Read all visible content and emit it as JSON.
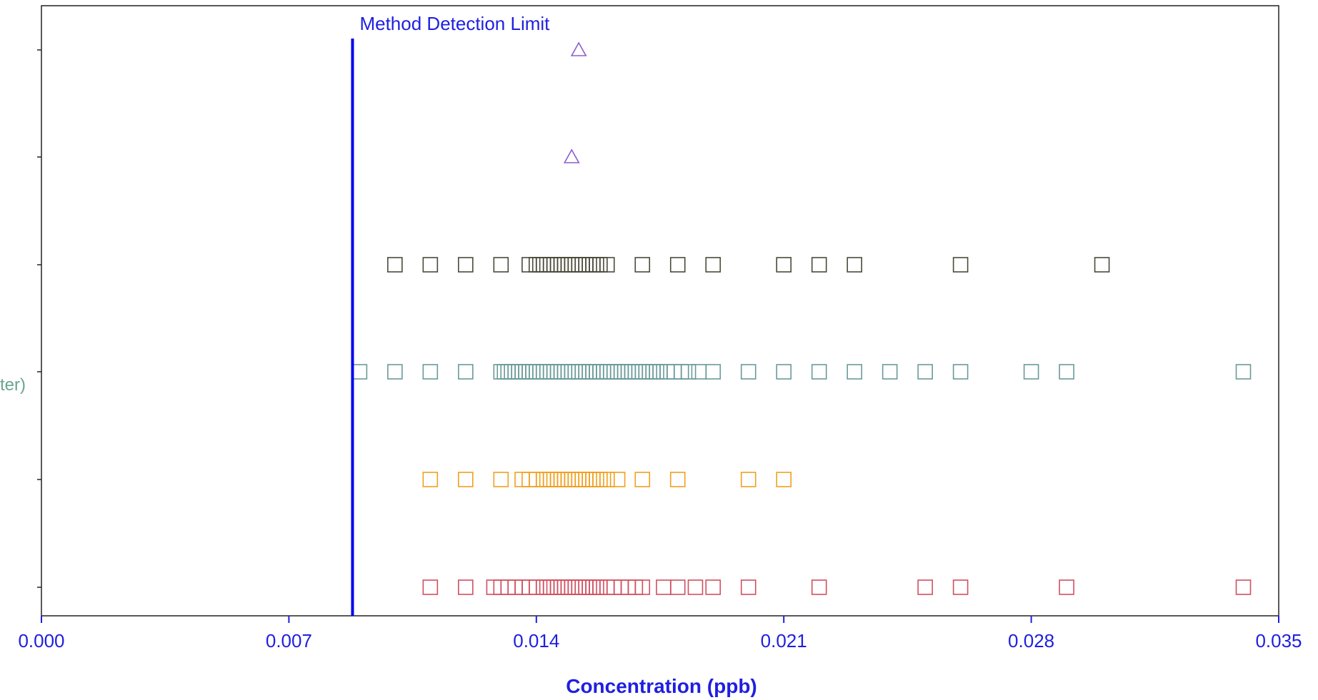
{
  "chart_data": {
    "type": "scatter",
    "title": "",
    "xlabel": "Concentration  (ppb)",
    "ylabel": "",
    "xlim": [
      0.0,
      0.035
    ],
    "x_ticks": [
      {
        "value": 0.0,
        "label": "0.000"
      },
      {
        "value": 0.007,
        "label": "0.007"
      },
      {
        "value": 0.014,
        "label": "0.014"
      },
      {
        "value": 0.021,
        "label": "0.021"
      },
      {
        "value": 0.028,
        "label": "0.028"
      },
      {
        "value": 0.035,
        "label": "0.035"
      }
    ],
    "grid": false,
    "reference_line": {
      "value": 0.0088,
      "label": "Method Detection Limit",
      "color": "#0000ee"
    },
    "partial_category_label": {
      "text": "ter)",
      "color": "#6aa68e",
      "row": 3
    },
    "rows": [
      {
        "marker": "triangle",
        "color": "#8a5fd0",
        "x": [
          0.0152
        ]
      },
      {
        "marker": "triangle",
        "color": "#8a5fd0",
        "x": [
          0.015
        ]
      },
      {
        "marker": "square",
        "color": "#4a4a3a",
        "x": [
          0.01,
          0.011,
          0.012,
          0.013,
          0.0138,
          0.014,
          0.0141,
          0.0142,
          0.0143,
          0.0144,
          0.0145,
          0.0146,
          0.0147,
          0.0148,
          0.0149,
          0.015,
          0.0151,
          0.0152,
          0.0153,
          0.0154,
          0.0155,
          0.0156,
          0.0157,
          0.0158,
          0.016,
          0.017,
          0.018,
          0.019,
          0.021,
          0.022,
          0.023,
          0.026,
          0.03
        ]
      },
      {
        "marker": "square",
        "color": "#6a9a9a",
        "x": [
          0.009,
          0.01,
          0.011,
          0.012,
          0.013,
          0.0131,
          0.0132,
          0.0133,
          0.0134,
          0.0135,
          0.0136,
          0.0137,
          0.0138,
          0.0139,
          0.014,
          0.0141,
          0.0142,
          0.0143,
          0.0144,
          0.0145,
          0.0146,
          0.0147,
          0.0148,
          0.0149,
          0.015,
          0.0151,
          0.0152,
          0.0153,
          0.0154,
          0.0155,
          0.0156,
          0.0157,
          0.0158,
          0.0159,
          0.016,
          0.0161,
          0.0162,
          0.0163,
          0.0164,
          0.0165,
          0.0166,
          0.0167,
          0.0168,
          0.0169,
          0.017,
          0.0171,
          0.0172,
          0.0173,
          0.0174,
          0.0175,
          0.0177,
          0.0179,
          0.0181,
          0.0183,
          0.0186,
          0.019,
          0.02,
          0.021,
          0.022,
          0.023,
          0.024,
          0.025,
          0.026,
          0.028,
          0.029,
          0.034
        ]
      },
      {
        "marker": "square",
        "color": "#f0a020",
        "x": [
          0.011,
          0.012,
          0.013,
          0.0136,
          0.0138,
          0.014,
          0.0142,
          0.0143,
          0.0144,
          0.0145,
          0.0146,
          0.0147,
          0.0148,
          0.0149,
          0.015,
          0.0151,
          0.0152,
          0.0153,
          0.0154,
          0.0155,
          0.0156,
          0.0157,
          0.0158,
          0.016,
          0.0163,
          0.017,
          0.018,
          0.02,
          0.021
        ]
      },
      {
        "marker": "square",
        "color": "#d05060",
        "x": [
          0.011,
          0.012,
          0.0128,
          0.013,
          0.0132,
          0.0134,
          0.0136,
          0.0138,
          0.014,
          0.0142,
          0.0143,
          0.0144,
          0.0145,
          0.0146,
          0.0147,
          0.0148,
          0.0149,
          0.015,
          0.0151,
          0.0152,
          0.0153,
          0.0154,
          0.0155,
          0.0156,
          0.0157,
          0.0158,
          0.016,
          0.0162,
          0.0164,
          0.0166,
          0.0168,
          0.017,
          0.0176,
          0.018,
          0.0185,
          0.019,
          0.02,
          0.022,
          0.025,
          0.026,
          0.029,
          0.034
        ]
      }
    ]
  }
}
